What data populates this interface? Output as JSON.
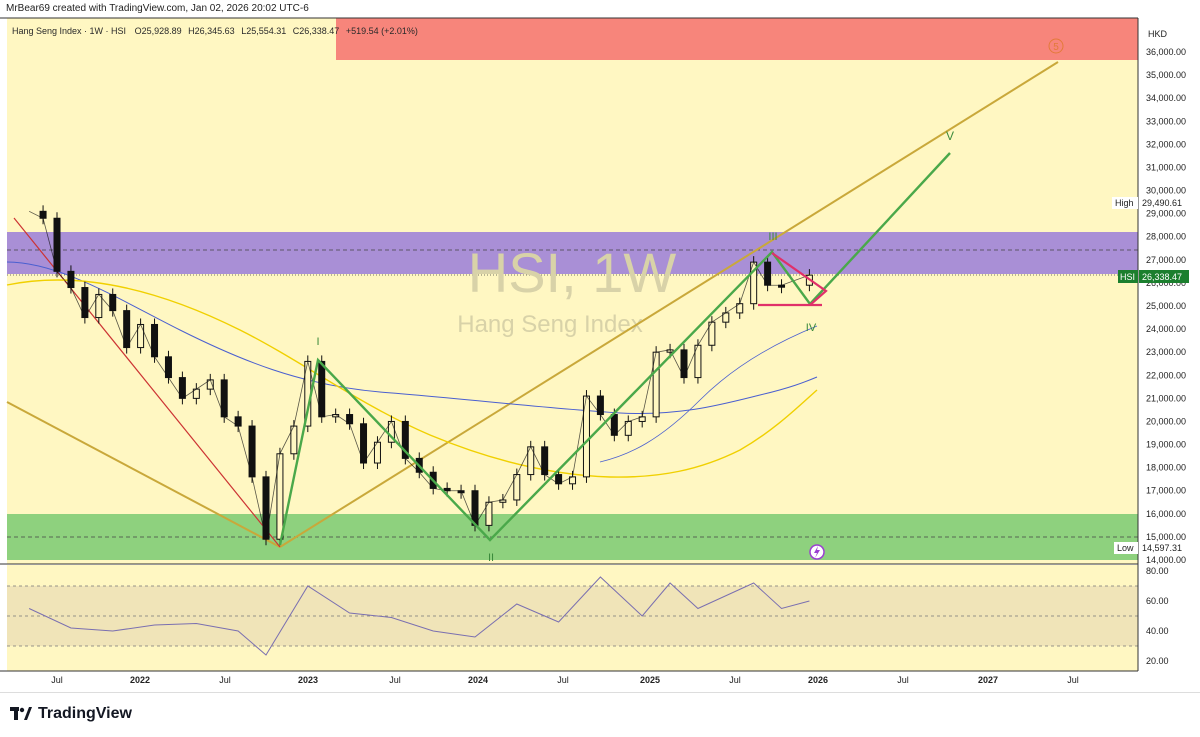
{
  "header": {
    "attribution": "MrBear69 created with TradingView.com, Jan 02, 2026 20:02 UTC-6"
  },
  "legend": {
    "symbol_line": "Hang Seng Index · 1W · HSI",
    "o": "O25,928.89",
    "h": "H26,345.63",
    "l": "L25,554.31",
    "c": "C26,338.47",
    "change": "+519.54 (+2.01%)"
  },
  "watermark": {
    "main": "HSI, 1W",
    "sub": "Hang Seng Index"
  },
  "currency": "HKD",
  "price_labels": {
    "high_tag": "High",
    "high_value": "29,490.61",
    "low_tag": "Low",
    "low_value": "14,597.31",
    "last_tag": "HSI",
    "last_value": "26,338.47"
  },
  "wave_labels": [
    "I",
    "II",
    "III",
    "IV",
    "V",
    "5"
  ],
  "brand": {
    "name": "TradingView"
  },
  "colors": {
    "background": "#fff7c2",
    "resistance_zone": "#f7857b",
    "purple_zone": "#a98fd6",
    "green_zone": "#8ed17e",
    "wave_line": "#4aa84a",
    "trend_line": "#c9a83a",
    "red_line": "#cc3333",
    "triangle": "#e0306a",
    "ma_blue": "#4a5fd0",
    "ma_yellow": "#f0d000",
    "rsi_line": "#7a6fb0",
    "rsi_band": "#f0e4b8",
    "candle": "#111111"
  },
  "chart_data": [
    {
      "type": "line",
      "subtype": "candlestick-approximation (weekly closes, approximate)",
      "x_tick_labels": [
        "Jul",
        "2022",
        "Jul",
        "2023",
        "Jul",
        "2024",
        "Jul",
        "2025",
        "Jul",
        "2026",
        "Jul",
        "2027",
        "Jul"
      ],
      "y_ticks": [
        14000,
        15000,
        16000,
        17000,
        18000,
        19000,
        20000,
        21000,
        22000,
        23000,
        24000,
        25000,
        26000,
        27000,
        28000,
        29000,
        30000,
        31000,
        32000,
        33000,
        34000,
        35000,
        36000
      ],
      "ylim": [
        14000,
        37000
      ],
      "series": [
        {
          "values": [
            {
              "x": "2021-05",
              "y": 29100
            },
            {
              "x": "2021-06",
              "y": 28800
            },
            {
              "x": "2021-07",
              "y": 26500
            },
            {
              "x": "2021-08",
              "y": 25800
            },
            {
              "x": "2021-09",
              "y": 24500
            },
            {
              "x": "2021-10",
              "y": 25500
            },
            {
              "x": "2021-11",
              "y": 24800
            },
            {
              "x": "2021-12",
              "y": 23200
            },
            {
              "x": "2022-01",
              "y": 24200
            },
            {
              "x": "2022-02",
              "y": 22800
            },
            {
              "x": "2022-03",
              "y": 21900
            },
            {
              "x": "2022-04",
              "y": 21000
            },
            {
              "x": "2022-05",
              "y": 21400
            },
            {
              "x": "2022-06",
              "y": 21800
            },
            {
              "x": "2022-07",
              "y": 20200
            },
            {
              "x": "2022-08",
              "y": 19800
            },
            {
              "x": "2022-09",
              "y": 17600
            },
            {
              "x": "2022-10",
              "y": 14900
            },
            {
              "x": "2022-11",
              "y": 18600
            },
            {
              "x": "2022-12",
              "y": 19800
            },
            {
              "x": "2023-01",
              "y": 22600
            },
            {
              "x": "2023-02",
              "y": 20200
            },
            {
              "x": "2023-03",
              "y": 20300
            },
            {
              "x": "2023-04",
              "y": 19900
            },
            {
              "x": "2023-05",
              "y": 18200
            },
            {
              "x": "2023-06",
              "y": 19100
            },
            {
              "x": "2023-07",
              "y": 20000
            },
            {
              "x": "2023-08",
              "y": 18400
            },
            {
              "x": "2023-09",
              "y": 17800
            },
            {
              "x": "2023-10",
              "y": 17100
            },
            {
              "x": "2023-11",
              "y": 17000
            },
            {
              "x": "2023-12",
              "y": 17000
            },
            {
              "x": "2024-01",
              "y": 15500
            },
            {
              "x": "2024-02",
              "y": 16500
            },
            {
              "x": "2024-03",
              "y": 16600
            },
            {
              "x": "2024-04",
              "y": 17700
            },
            {
              "x": "2024-05",
              "y": 18900
            },
            {
              "x": "2024-06",
              "y": 17700
            },
            {
              "x": "2024-07",
              "y": 17300
            },
            {
              "x": "2024-08",
              "y": 17600
            },
            {
              "x": "2024-09",
              "y": 21100
            },
            {
              "x": "2024-10",
              "y": 20300
            },
            {
              "x": "2024-11",
              "y": 19400
            },
            {
              "x": "2024-12",
              "y": 20000
            },
            {
              "x": "2025-01",
              "y": 20200
            },
            {
              "x": "2025-02",
              "y": 23000
            },
            {
              "x": "2025-03",
              "y": 23100
            },
            {
              "x": "2025-04",
              "y": 21900
            },
            {
              "x": "2025-05",
              "y": 23300
            },
            {
              "x": "2025-06",
              "y": 24300
            },
            {
              "x": "2025-07",
              "y": 24700
            },
            {
              "x": "2025-08",
              "y": 25100
            },
            {
              "x": "2025-09",
              "y": 26900
            },
            {
              "x": "2025-10",
              "y": 25900
            },
            {
              "x": "2025-11",
              "y": 25900
            },
            {
              "x": "2026-01",
              "y": 26338
            }
          ]
        }
      ],
      "zones": [
        {
          "from": 35700,
          "to": 37000,
          "color": "resistance_zone"
        },
        {
          "from": 26400,
          "to": 28200,
          "color": "purple_zone"
        },
        {
          "from": 14000,
          "to": 16000,
          "color": "green_zone"
        }
      ],
      "reference_lines": [
        27400,
        26400,
        15000
      ],
      "grid": false,
      "legend": "top-left"
    },
    {
      "type": "line",
      "subtype": "RSI pane (approximate)",
      "y_ticks": [
        20,
        40,
        60,
        80
      ],
      "ylim": [
        17,
        84
      ],
      "band": [
        30,
        70
      ],
      "series": [
        {
          "values": [
            {
              "x": "2021-05",
              "y": 55
            },
            {
              "x": "2021-08",
              "y": 42
            },
            {
              "x": "2021-11",
              "y": 40
            },
            {
              "x": "2022-02",
              "y": 44
            },
            {
              "x": "2022-05",
              "y": 45
            },
            {
              "x": "2022-08",
              "y": 40
            },
            {
              "x": "2022-10",
              "y": 24
            },
            {
              "x": "2023-01",
              "y": 70
            },
            {
              "x": "2023-04",
              "y": 52
            },
            {
              "x": "2023-07",
              "y": 49
            },
            {
              "x": "2023-10",
              "y": 40
            },
            {
              "x": "2024-01",
              "y": 36
            },
            {
              "x": "2024-04",
              "y": 58
            },
            {
              "x": "2024-07",
              "y": 46
            },
            {
              "x": "2024-10",
              "y": 76
            },
            {
              "x": "2025-01",
              "y": 50
            },
            {
              "x": "2025-03",
              "y": 72
            },
            {
              "x": "2025-05",
              "y": 55
            },
            {
              "x": "2025-09",
              "y": 72
            },
            {
              "x": "2025-11",
              "y": 55
            },
            {
              "x": "2026-01",
              "y": 60
            }
          ]
        }
      ]
    }
  ]
}
